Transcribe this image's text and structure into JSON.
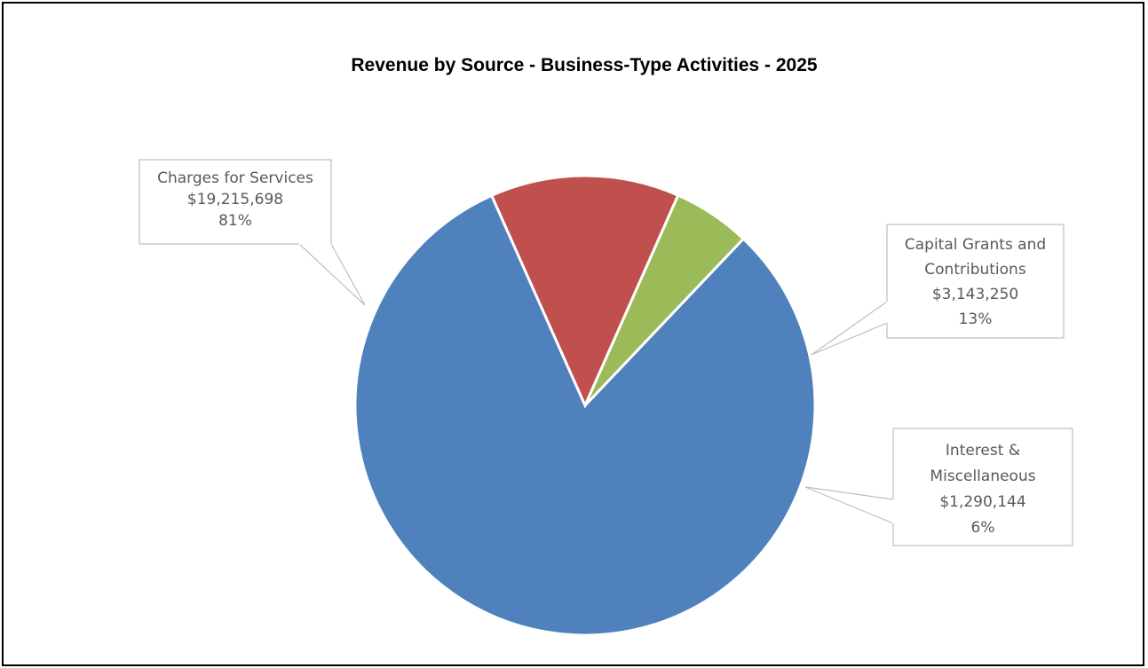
{
  "chart_data": {
    "type": "pie",
    "title": "Revenue by Source - Business-Type Activities - 2025",
    "categories": [
      "Charges for Services",
      "Capital Grants and Contributions",
      "Interest & Miscellaneous"
    ],
    "values": [
      19215698,
      3143250,
      1290144
    ],
    "slices": [
      {
        "name": "Charges for Services",
        "value": 19215698,
        "percent": 81,
        "color": "#4f81bd",
        "label_lines": [
          "Charges for Services",
          "$19,215,698",
          "81%"
        ]
      },
      {
        "name": "Capital Grants and Contributions",
        "value": 3143250,
        "percent": 13,
        "color": "#c0504d",
        "label_lines": [
          "Capital Grants and",
          "Contributions",
          "$3,143,250",
          "13%"
        ]
      },
      {
        "name": "Interest & Miscellaneous",
        "value": 1290144,
        "percent": 6,
        "color": "#9bbb59",
        "label_lines": [
          "Interest &",
          "Miscellaneous",
          "$1,290,144",
          "6%"
        ]
      }
    ],
    "legend": "none",
    "data_labels": "callouts"
  }
}
